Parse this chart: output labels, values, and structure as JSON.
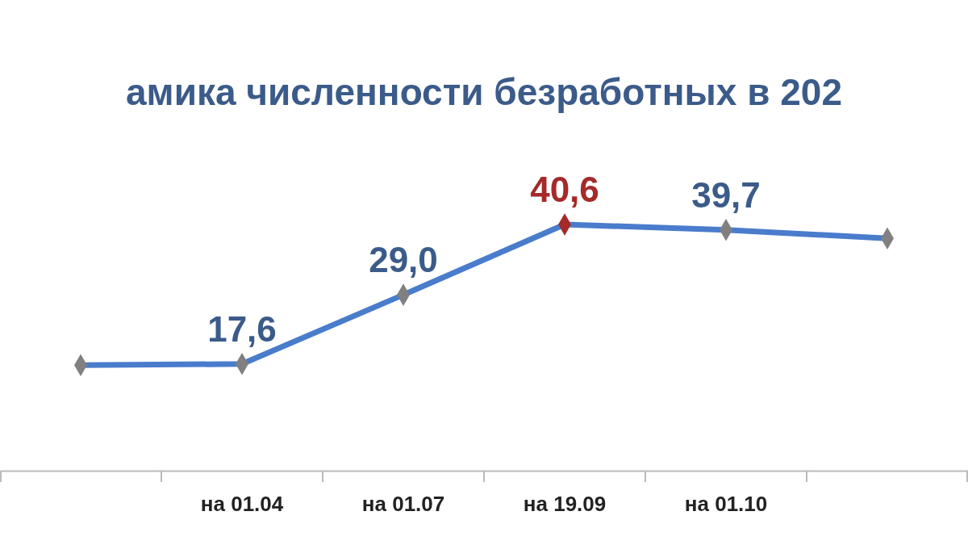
{
  "chart_data": {
    "type": "line",
    "title": "амика численности безработных в 202",
    "categories": [
      null,
      "на 01.04",
      "на 01.07",
      "на 19.09",
      "на 01.10",
      null
    ],
    "series": [
      {
        "color": "#4a7ccc",
        "values": [
          17.4,
          17.6,
          29.0,
          40.6,
          39.7,
          38.3
        ],
        "value_labels": [
          null,
          "17,6",
          "29,0",
          "40,6",
          "39,7",
          null
        ],
        "colors": [
          "#808080",
          "#808080",
          "#808080",
          "#a52a2a",
          "#808080",
          "#808080"
        ]
      }
    ],
    "tick_labels": "x",
    "marker": "diamond"
  }
}
